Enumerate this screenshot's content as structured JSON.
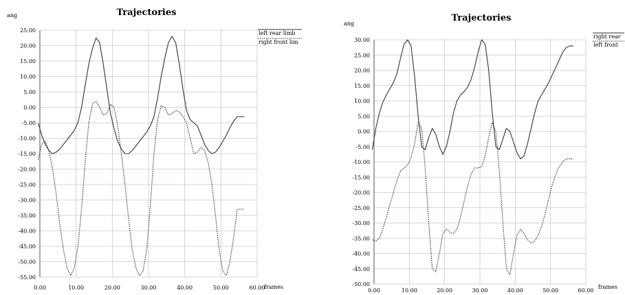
{
  "chart_data": [
    {
      "type": "line",
      "title": "Trajectories",
      "xlabel": "frames",
      "ylabel": "ang",
      "xlim": [
        0,
        60
      ],
      "ylim": [
        -55,
        25
      ],
      "x_ticks": [
        "0.00",
        "10.00",
        "20.00",
        "30.00",
        "40.00",
        "50.00",
        "60.00"
      ],
      "y_ticks": [
        "25.00",
        "20.00",
        "15.00",
        "10.00",
        "5.00",
        "0.00",
        "-5.00",
        "-10.00",
        "-15.00",
        "-20.00",
        "-25.00",
        "-30.00",
        "-35.00",
        "-40.00",
        "-45.00",
        "-50.00",
        "-55.00"
      ],
      "grid": true,
      "legend_position": "top-right",
      "series": [
        {
          "name": "left rear limb",
          "style": "solid",
          "color": "#333333",
          "points": [
            [
              -0.5,
              -5
            ],
            [
              0.5,
              -9
            ],
            [
              1.5,
              -12
            ],
            [
              2.5,
              -14
            ],
            [
              3.5,
              -15
            ],
            [
              4.5,
              -14.5
            ],
            [
              5.5,
              -13.5
            ],
            [
              6.5,
              -12
            ],
            [
              7.5,
              -10.5
            ],
            [
              8.5,
              -9
            ],
            [
              9.5,
              -7.5
            ],
            [
              10.5,
              -5
            ],
            [
              11.5,
              0
            ],
            [
              12.5,
              7
            ],
            [
              13.5,
              14
            ],
            [
              14.5,
              19
            ],
            [
              15.5,
              22.5
            ],
            [
              16.5,
              21
            ],
            [
              17.5,
              14
            ],
            [
              18.5,
              6
            ],
            [
              19.5,
              -2
            ],
            [
              20.5,
              -7
            ],
            [
              21.5,
              -11
            ],
            [
              22.5,
              -13.5
            ],
            [
              23.5,
              -15
            ],
            [
              24.5,
              -15
            ],
            [
              25.5,
              -14
            ],
            [
              26.5,
              -12.5
            ],
            [
              27.5,
              -11
            ],
            [
              28.5,
              -9.5
            ],
            [
              29.5,
              -8
            ],
            [
              30.5,
              -6
            ],
            [
              31.5,
              -3
            ],
            [
              32.5,
              3
            ],
            [
              33.5,
              10
            ],
            [
              34.5,
              16
            ],
            [
              35.5,
              21
            ],
            [
              36.5,
              23
            ],
            [
              37.5,
              21
            ],
            [
              38.5,
              14
            ],
            [
              39.5,
              6
            ],
            [
              40.5,
              -1
            ],
            [
              41.5,
              -4
            ],
            [
              42.5,
              -5
            ],
            [
              43.5,
              -6
            ],
            [
              44.5,
              -9
            ],
            [
              45.5,
              -12
            ],
            [
              46.5,
              -14
            ],
            [
              47.5,
              -15
            ],
            [
              48.5,
              -14.5
            ],
            [
              49.5,
              -13
            ],
            [
              50.5,
              -11
            ],
            [
              51.5,
              -9
            ],
            [
              52.5,
              -6.5
            ],
            [
              53.5,
              -4.5
            ],
            [
              54.5,
              -3
            ],
            [
              55.5,
              -3
            ],
            [
              56.5,
              -3
            ]
          ]
        },
        {
          "name": "right front lim",
          "style": "dashed",
          "color": "#333333",
          "points": [
            [
              -0.5,
              -17
            ],
            [
              0.5,
              -12
            ],
            [
              1.5,
              -11
            ],
            [
              2.5,
              -14
            ],
            [
              3.5,
              -20
            ],
            [
              4.5,
              -28
            ],
            [
              5.5,
              -38
            ],
            [
              6.5,
              -46
            ],
            [
              7.5,
              -52
            ],
            [
              8.5,
              -54.5
            ],
            [
              9.5,
              -52
            ],
            [
              10.5,
              -45
            ],
            [
              11.5,
              -33
            ],
            [
              12.5,
              -18
            ],
            [
              13.5,
              -5
            ],
            [
              14.5,
              1
            ],
            [
              15.5,
              2
            ],
            [
              16.5,
              0
            ],
            [
              17.5,
              -2.5
            ],
            [
              18.5,
              -2
            ],
            [
              19.5,
              1
            ],
            [
              20.5,
              0
            ],
            [
              21.5,
              -6
            ],
            [
              22.5,
              -15
            ],
            [
              23.5,
              -25
            ],
            [
              24.5,
              -36
            ],
            [
              25.5,
              -46
            ],
            [
              26.5,
              -52
            ],
            [
              27.5,
              -54.5
            ],
            [
              28.5,
              -53
            ],
            [
              29.5,
              -46
            ],
            [
              30.5,
              -32
            ],
            [
              31.5,
              -15
            ],
            [
              32.5,
              -4
            ],
            [
              33.5,
              0.5
            ],
            [
              34.5,
              0
            ],
            [
              35.5,
              -2.5
            ],
            [
              36.5,
              -2
            ],
            [
              37.5,
              -1
            ],
            [
              38.5,
              -1.5
            ],
            [
              39.5,
              -3
            ],
            [
              40.5,
              -5
            ],
            [
              41.5,
              -10
            ],
            [
              42.5,
              -15
            ],
            [
              43.5,
              -14.5
            ],
            [
              44.5,
              -13
            ],
            [
              45.5,
              -14
            ],
            [
              46.5,
              -18
            ],
            [
              47.5,
              -25
            ],
            [
              48.5,
              -35
            ],
            [
              49.5,
              -46
            ],
            [
              50.5,
              -53
            ],
            [
              51.5,
              -54.5
            ],
            [
              52.5,
              -50
            ],
            [
              53.5,
              -42
            ],
            [
              54.5,
              -33
            ],
            [
              55.5,
              -33
            ],
            [
              56.5,
              -33
            ]
          ]
        }
      ]
    },
    {
      "type": "line",
      "title": "Trajectories",
      "xlabel": "frames",
      "ylabel": "ang",
      "xlim": [
        0,
        60
      ],
      "ylim": [
        -50,
        30
      ],
      "x_ticks": [
        "0.00",
        "10.00",
        "20.00",
        "30.00",
        "40.00",
        "50.00",
        "60.00"
      ],
      "y_ticks": [
        "30.00",
        "25.00",
        "20.00",
        "15.00",
        "10.00",
        "5.00",
        "0.00",
        "-5.00",
        "-10.00",
        "-15.00",
        "-20.00",
        "-25.00",
        "-30.00",
        "-35.00",
        "-40.00",
        "-45.00",
        "-50.00"
      ],
      "grid": true,
      "legend_position": "top-right",
      "series": [
        {
          "name": "right rear",
          "style": "solid",
          "color": "#333333",
          "points": [
            [
              -0.5,
              -6
            ],
            [
              0.5,
              1
            ],
            [
              1.5,
              6
            ],
            [
              2.5,
              9.5
            ],
            [
              3.5,
              12
            ],
            [
              4.5,
              14
            ],
            [
              5.5,
              16
            ],
            [
              6.5,
              19
            ],
            [
              7.5,
              24
            ],
            [
              8.5,
              28.5
            ],
            [
              9.5,
              30
            ],
            [
              10.5,
              28
            ],
            [
              11.5,
              18
            ],
            [
              12.5,
              5
            ],
            [
              13.5,
              -5
            ],
            [
              14.5,
              -6
            ],
            [
              15.5,
              -2
            ],
            [
              16.5,
              1
            ],
            [
              17.5,
              -1
            ],
            [
              18.5,
              -5
            ],
            [
              19.5,
              -7.5
            ],
            [
              20.5,
              -5
            ],
            [
              21.5,
              0
            ],
            [
              22.5,
              6
            ],
            [
              23.5,
              10
            ],
            [
              24.5,
              12
            ],
            [
              25.5,
              13
            ],
            [
              26.5,
              14.5
            ],
            [
              27.5,
              17
            ],
            [
              28.5,
              21
            ],
            [
              29.5,
              26
            ],
            [
              30.5,
              30
            ],
            [
              31.5,
              28.5
            ],
            [
              32.5,
              20
            ],
            [
              33.5,
              6
            ],
            [
              34.5,
              -5
            ],
            [
              35.5,
              -6
            ],
            [
              36.5,
              -2.5
            ],
            [
              37.5,
              1
            ],
            [
              38.5,
              0
            ],
            [
              39.5,
              -3.5
            ],
            [
              40.5,
              -7
            ],
            [
              41.5,
              -9
            ],
            [
              42.5,
              -8
            ],
            [
              43.5,
              -4
            ],
            [
              44.5,
              1
            ],
            [
              45.5,
              6
            ],
            [
              46.5,
              10
            ],
            [
              47.5,
              12
            ],
            [
              48.5,
              14
            ],
            [
              49.5,
              16
            ],
            [
              50.5,
              18.5
            ],
            [
              51.5,
              21
            ],
            [
              52.5,
              23.5
            ],
            [
              53.5,
              26
            ],
            [
              54.5,
              27.5
            ],
            [
              55.5,
              28
            ],
            [
              56.5,
              28
            ]
          ]
        },
        {
          "name": "left front",
          "style": "dashed",
          "color": "#333333",
          "points": [
            [
              -0.5,
              -35.5
            ],
            [
              0.5,
              -36
            ],
            [
              1.5,
              -35
            ],
            [
              2.5,
              -32
            ],
            [
              3.5,
              -28
            ],
            [
              4.5,
              -24
            ],
            [
              5.5,
              -20
            ],
            [
              6.5,
              -16
            ],
            [
              7.5,
              -13
            ],
            [
              8.5,
              -12
            ],
            [
              9.5,
              -11
            ],
            [
              10.5,
              -8.5
            ],
            [
              11.5,
              -4
            ],
            [
              12.5,
              3
            ],
            [
              13.5,
              1
            ],
            [
              14.5,
              -12
            ],
            [
              15.5,
              -30
            ],
            [
              16.5,
              -45
            ],
            [
              17.5,
              -46
            ],
            [
              18.5,
              -40
            ],
            [
              19.5,
              -33.5
            ],
            [
              20.5,
              -32
            ],
            [
              21.5,
              -33
            ],
            [
              22.5,
              -33.5
            ],
            [
              23.5,
              -32
            ],
            [
              24.5,
              -28
            ],
            [
              25.5,
              -23
            ],
            [
              26.5,
              -18
            ],
            [
              27.5,
              -14
            ],
            [
              28.5,
              -12
            ],
            [
              29.5,
              -12
            ],
            [
              30.5,
              -11.5
            ],
            [
              31.5,
              -8
            ],
            [
              32.5,
              -2
            ],
            [
              33.5,
              3
            ],
            [
              34.5,
              0
            ],
            [
              35.5,
              -13
            ],
            [
              36.5,
              -30
            ],
            [
              37.5,
              -45
            ],
            [
              38.5,
              -47
            ],
            [
              39.5,
              -40
            ],
            [
              40.5,
              -34
            ],
            [
              41.5,
              -32
            ],
            [
              42.5,
              -33.5
            ],
            [
              43.5,
              -35.5
            ],
            [
              44.5,
              -36.5
            ],
            [
              45.5,
              -36
            ],
            [
              46.5,
              -34
            ],
            [
              47.5,
              -31
            ],
            [
              48.5,
              -27
            ],
            [
              49.5,
              -22
            ],
            [
              50.5,
              -17.5
            ],
            [
              51.5,
              -14
            ],
            [
              52.5,
              -11.5
            ],
            [
              53.5,
              -10
            ],
            [
              54.5,
              -9
            ],
            [
              55.5,
              -9
            ],
            [
              56.5,
              -9
            ]
          ]
        }
      ]
    }
  ]
}
